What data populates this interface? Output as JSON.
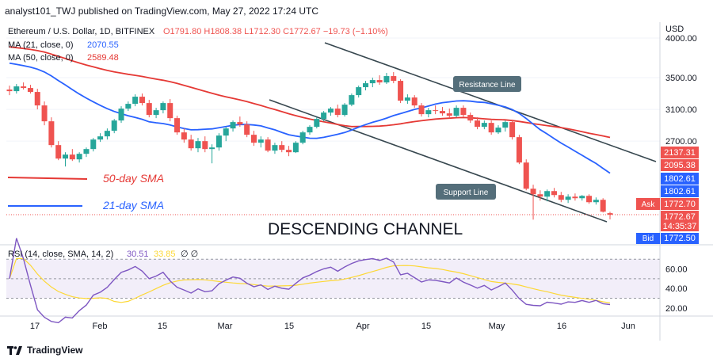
{
  "header": {
    "publish_line": "analyst101_TWJ published on TradingView.com, May 27, 2022 17:24 UTC"
  },
  "chart_data": {
    "type": "candlestick",
    "symbol_line": "Ethereum / U.S. Dollar, 1D, BITFINEX",
    "ohlc_line": "O1791.80 H1808.38 L1712.30 C1772.67 −19.73 (−1.10%)",
    "ma21_label": "MA (21, close, 0)",
    "ma21_value": "2070.55",
    "ma50_label": "MA (50, close, 0)",
    "ma50_value": "2589.48",
    "currency": "USD",
    "y_ticks": [
      "4000.00",
      "3500.00",
      "3100.00",
      "2700.00"
    ],
    "x_ticks": [
      "17",
      "Feb",
      "15",
      "Mar",
      "15",
      "Apr",
      "15",
      "May",
      "16",
      "Jun"
    ],
    "annotations": {
      "sma50": "50-day SMA",
      "sma21": "21-day SMA",
      "channel": "DESCENDING CHANNEL",
      "resistance": "Resistance Line",
      "support": "Support Line"
    },
    "price_tags": {
      "t1": "2137.31",
      "t2": "2095.38",
      "t3": "1802.61",
      "t4": "1802.61",
      "ask_label": "Ask",
      "ask": "1772.70",
      "last": "1772.67",
      "countdown": "14:35:37",
      "bid_label": "Bid",
      "bid": "1772.50"
    },
    "rsi": {
      "label": "RSI (14, close, SMA, 14, 2)",
      "value": "30.51",
      "sma_value": "33.85",
      "extra": "∅ ∅",
      "y_ticks": [
        "60.00",
        "40.00",
        "20.00"
      ]
    },
    "candles": [
      [
        3350,
        3400,
        3280,
        3330
      ],
      [
        3330,
        3420,
        3300,
        3390
      ],
      [
        3390,
        3440,
        3350,
        3370
      ],
      [
        3370,
        3410,
        3300,
        3320
      ],
      [
        3320,
        3360,
        3100,
        3150
      ],
      [
        3150,
        3200,
        2900,
        2950
      ],
      [
        2950,
        3000,
        2620,
        2650
      ],
      [
        2650,
        2700,
        2460,
        2480
      ],
      [
        2480,
        2560,
        2380,
        2530
      ],
      [
        2530,
        2600,
        2450,
        2470
      ],
      [
        2470,
        2560,
        2430,
        2540
      ],
      [
        2540,
        2620,
        2500,
        2600
      ],
      [
        2600,
        2740,
        2570,
        2720
      ],
      [
        2720,
        2800,
        2690,
        2760
      ],
      [
        2760,
        2860,
        2720,
        2830
      ],
      [
        2830,
        2980,
        2800,
        2960
      ],
      [
        2960,
        3140,
        2930,
        3110
      ],
      [
        3110,
        3200,
        3080,
        3170
      ],
      [
        3170,
        3290,
        3140,
        3260
      ],
      [
        3260,
        3300,
        3150,
        3180
      ],
      [
        3180,
        3220,
        3000,
        3030
      ],
      [
        3030,
        3120,
        2990,
        3090
      ],
      [
        3090,
        3200,
        3050,
        3180
      ],
      [
        3180,
        3230,
        2950,
        2990
      ],
      [
        2990,
        3020,
        2780,
        2810
      ],
      [
        2810,
        2860,
        2680,
        2720
      ],
      [
        2720,
        2780,
        2580,
        2610
      ],
      [
        2610,
        2740,
        2560,
        2700
      ],
      [
        2700,
        2760,
        2560,
        2600
      ],
      [
        2600,
        2660,
        2420,
        2620
      ],
      [
        2620,
        2800,
        2580,
        2770
      ],
      [
        2770,
        2880,
        2700,
        2860
      ],
      [
        2860,
        2960,
        2820,
        2940
      ],
      [
        2940,
        3010,
        2880,
        2910
      ],
      [
        2910,
        2950,
        2750,
        2780
      ],
      [
        2780,
        2830,
        2640,
        2680
      ],
      [
        2680,
        2760,
        2620,
        2720
      ],
      [
        2720,
        2750,
        2560,
        2580
      ],
      [
        2580,
        2680,
        2540,
        2650
      ],
      [
        2650,
        2700,
        2560,
        2590
      ],
      [
        2590,
        2640,
        2510,
        2560
      ],
      [
        2560,
        2700,
        2550,
        2680
      ],
      [
        2680,
        2830,
        2660,
        2810
      ],
      [
        2810,
        2900,
        2780,
        2880
      ],
      [
        2880,
        3000,
        2860,
        2980
      ],
      [
        2980,
        3080,
        2950,
        3060
      ],
      [
        3060,
        3130,
        3020,
        3110
      ],
      [
        3110,
        3160,
        3000,
        3030
      ],
      [
        3030,
        3180,
        3010,
        3160
      ],
      [
        3160,
        3300,
        3140,
        3280
      ],
      [
        3280,
        3400,
        3250,
        3380
      ],
      [
        3380,
        3460,
        3340,
        3430
      ],
      [
        3430,
        3500,
        3380,
        3470
      ],
      [
        3470,
        3530,
        3410,
        3440
      ],
      [
        3440,
        3560,
        3420,
        3520
      ],
      [
        3520,
        3570,
        3430,
        3460
      ],
      [
        3460,
        3480,
        3180,
        3210
      ],
      [
        3210,
        3290,
        3170,
        3250
      ],
      [
        3250,
        3280,
        3120,
        3150
      ],
      [
        3150,
        3180,
        3010,
        3040
      ],
      [
        3040,
        3120,
        3000,
        3090
      ],
      [
        3090,
        3150,
        3040,
        3080
      ],
      [
        3080,
        3130,
        3020,
        3050
      ],
      [
        3050,
        3110,
        2990,
        3020
      ],
      [
        3020,
        3150,
        3000,
        3120
      ],
      [
        3120,
        3150,
        3000,
        3030
      ],
      [
        3030,
        3060,
        2930,
        2960
      ],
      [
        2960,
        3000,
        2850,
        2880
      ],
      [
        2880,
        2960,
        2850,
        2930
      ],
      [
        2930,
        2960,
        2780,
        2810
      ],
      [
        2810,
        2900,
        2790,
        2870
      ],
      [
        2870,
        2960,
        2820,
        2940
      ],
      [
        2940,
        2970,
        2720,
        2750
      ],
      [
        2750,
        2780,
        2410,
        2430
      ],
      [
        2430,
        2470,
        2080,
        2100
      ],
      [
        2100,
        2150,
        1710,
        2030
      ],
      [
        2030,
        2080,
        1950,
        2000
      ],
      [
        2000,
        2090,
        1940,
        2070
      ],
      [
        2070,
        2110,
        1990,
        2020
      ],
      [
        2020,
        2060,
        1930,
        1960
      ],
      [
        1960,
        2030,
        1920,
        2000
      ],
      [
        2000,
        2040,
        1950,
        1980
      ],
      [
        1980,
        2020,
        1950,
        2010
      ],
      [
        2010,
        2030,
        1910,
        1930
      ],
      [
        1930,
        1990,
        1900,
        1960
      ],
      [
        1960,
        1980,
        1800,
        1810
      ],
      [
        1791.8,
        1808.38,
        1712.3,
        1772.67
      ]
    ]
  }
}
